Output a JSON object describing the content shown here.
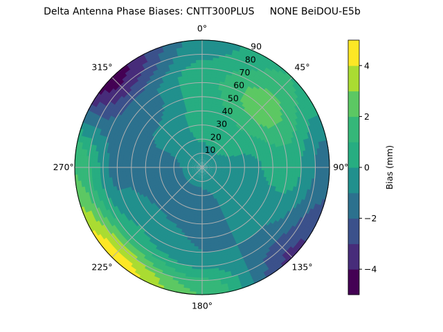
{
  "chart_data": {
    "type": "polar-contour",
    "title": "Delta Antenna Phase Biases: CNTT300PLUS     NONE BeiDOU-E5b",
    "angular_tick_labels": [
      "0°",
      "45°",
      "90°",
      "135°",
      "180°",
      "225°",
      "270°",
      "315°"
    ],
    "radial_tick_labels": [
      "10",
      "20",
      "30",
      "40",
      "50",
      "60",
      "70",
      "80",
      "90"
    ],
    "radial_range": [
      0,
      90
    ],
    "angular_direction": "clockwise, 0° at top",
    "grid": true,
    "colormap": "viridis",
    "colorbar": {
      "label": "Bias (mm)",
      "levels": [
        -5,
        -4,
        -3,
        -2,
        -1,
        0,
        1,
        2,
        3,
        4,
        5
      ],
      "tick_labels": [
        "−4",
        "−2",
        "0",
        "2",
        "4"
      ],
      "ticks": [
        -4,
        -2,
        0,
        2,
        4
      ],
      "colors": [
        "#440154",
        "#472c7a",
        "#3b518b",
        "#2c718e",
        "#21908d",
        "#27ad81",
        "#35b779",
        "#5cc863",
        "#aadc32",
        "#fde725"
      ]
    },
    "grid_samples": {
      "azimuths_deg": [
        0,
        45,
        90,
        135,
        180,
        225,
        270,
        315
      ],
      "zenith_deg": [
        0,
        30,
        60,
        90
      ],
      "bias_mm": [
        [
          -0.5,
          0.3,
          0.6,
          -0.5
        ],
        [
          -0.5,
          0.6,
          2.6,
          1.0
        ],
        [
          -0.5,
          -0.3,
          0.5,
          -1.5
        ],
        [
          -0.5,
          -0.6,
          -1.0,
          -3.2
        ],
        [
          -0.5,
          -1.5,
          -1.0,
          2.0
        ],
        [
          -0.5,
          -1.6,
          0.0,
          4.6
        ],
        [
          -0.5,
          -1.5,
          -1.3,
          2.0
        ],
        [
          -0.5,
          -0.6,
          -1.6,
          -4.5
        ]
      ]
    }
  }
}
